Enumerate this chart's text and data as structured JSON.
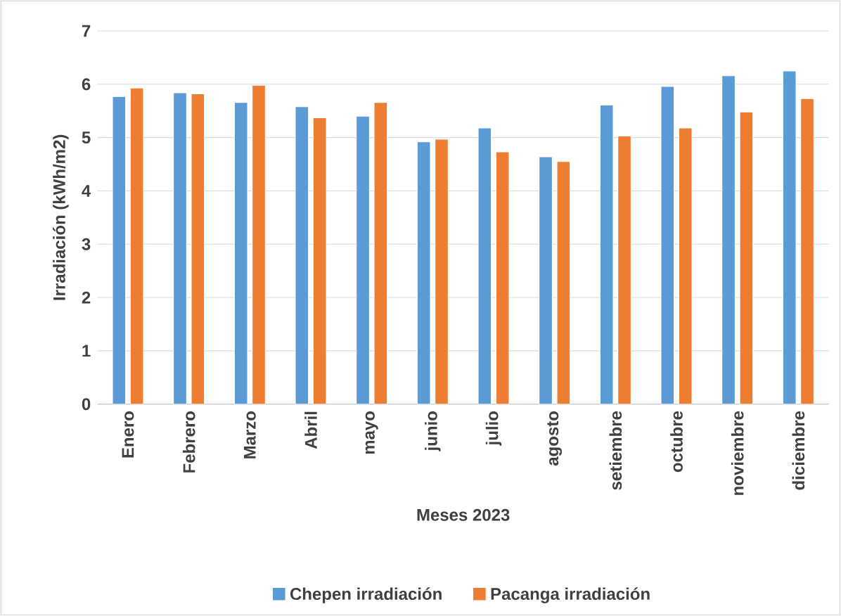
{
  "chart_data": {
    "type": "bar",
    "xlabel": "Meses 2023",
    "ylabel": "Irradiación (kWh/m2)",
    "categories": [
      "Enero",
      "Febrero",
      "Marzo",
      "Abril",
      "mayo",
      "junio",
      "julio",
      "agosto",
      "setiembre",
      "octubre",
      "noviembre",
      "diciembre"
    ],
    "series": [
      {
        "name": "Chepen irradiación",
        "color": "#5b9bd5",
        "values": [
          5.77,
          5.84,
          5.66,
          5.58,
          5.4,
          4.92,
          5.18,
          4.64,
          5.61,
          5.96,
          6.16,
          6.25
        ]
      },
      {
        "name": "Pacanga irradiación",
        "color": "#ed7d31",
        "values": [
          5.93,
          5.82,
          5.98,
          5.37,
          5.66,
          4.97,
          4.73,
          4.55,
          5.03,
          5.18,
          5.48,
          5.73
        ]
      }
    ],
    "ylim": [
      0,
      7
    ],
    "yticks": [
      0,
      1,
      2,
      3,
      4,
      5,
      6,
      7
    ],
    "grid": "y",
    "legend": "bottom"
  }
}
